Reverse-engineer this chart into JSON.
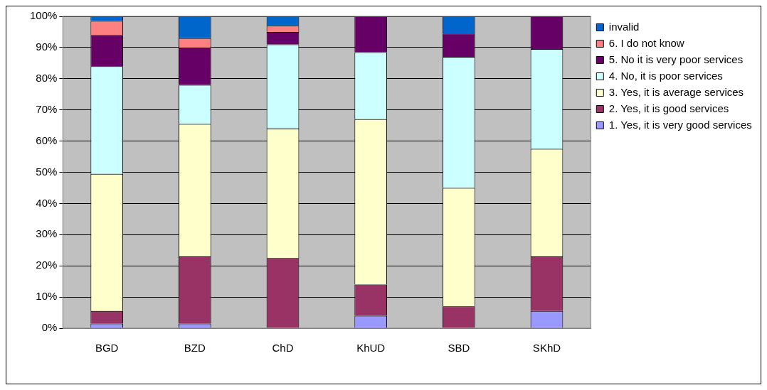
{
  "chart_data": {
    "type": "bar",
    "stacked": true,
    "categories": [
      "BGD",
      "BZD",
      "ChD",
      "KhUD",
      "SBD",
      "SKhD"
    ],
    "series": [
      {
        "name": "1. Yes, it is very good services",
        "color": "#9999ff",
        "values": [
          1.5,
          1.5,
          0,
          4,
          0,
          5.5
        ]
      },
      {
        "name": "2. Yes, it is good services",
        "color": "#993366",
        "values": [
          4,
          21.5,
          22.5,
          10,
          7,
          17.5
        ]
      },
      {
        "name": "3. Yes, it is average services",
        "color": "#ffffcc",
        "values": [
          44,
          42.5,
          41.5,
          53,
          38,
          34.5
        ]
      },
      {
        "name": "4. No, it is poor services",
        "color": "#ccffff",
        "values": [
          34.5,
          12.5,
          27,
          21.5,
          42,
          32
        ]
      },
      {
        "name": "5. No it is very poor services",
        "color": "#660066",
        "values": [
          10,
          12,
          4,
          11.5,
          7.5,
          10.5
        ]
      },
      {
        "name": "6. I do not know",
        "color": "#ff8080",
        "values": [
          4.5,
          3,
          2,
          0,
          0,
          0
        ]
      },
      {
        "name": "invalid",
        "color": "#0066cc",
        "values": [
          1.5,
          7,
          3,
          0,
          5.5,
          0
        ]
      }
    ],
    "ylim": [
      0,
      100
    ],
    "yticks": [
      {
        "value": 0,
        "label": "0%"
      },
      {
        "value": 10,
        "label": "10%"
      },
      {
        "value": 20,
        "label": "20%"
      },
      {
        "value": 30,
        "label": "30%"
      },
      {
        "value": 40,
        "label": "40%"
      },
      {
        "value": 50,
        "label": "50%"
      },
      {
        "value": 60,
        "label": "60%"
      },
      {
        "value": 70,
        "label": "70%"
      },
      {
        "value": 80,
        "label": "80%"
      },
      {
        "value": 90,
        "label": "90%"
      },
      {
        "value": 100,
        "label": "100%"
      }
    ],
    "grid": "y",
    "legend": "right"
  }
}
